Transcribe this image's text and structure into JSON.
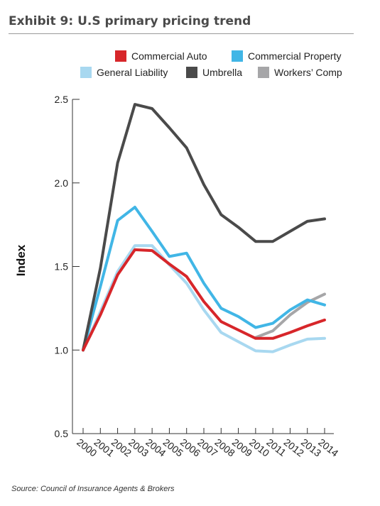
{
  "header": {
    "title": "Exhibit 9: U.S primary pricing trend"
  },
  "footer": {
    "source": "Source: Council of Insurance Agents & Brokers"
  },
  "chart_data": {
    "type": "line",
    "title": "",
    "xlabel": "",
    "ylabel": "Index",
    "x": [
      "2000",
      "2001",
      "2002",
      "2003",
      "2004",
      "2005",
      "2006",
      "2007",
      "2008",
      "2009",
      "2010",
      "2011",
      "2012",
      "2013",
      "2014"
    ],
    "ylim": [
      0.5,
      2.5
    ],
    "yticks": [
      "0.5",
      "1.0",
      "1.5",
      "2.0",
      "2.5"
    ],
    "grid": false,
    "legend_position": "top",
    "series": [
      {
        "name": "Commercial Auto",
        "color": "#d7262a",
        "values": [
          1.0,
          1.21,
          1.45,
          1.6,
          1.595,
          1.515,
          1.44,
          1.29,
          1.17,
          1.12,
          1.07,
          1.07,
          1.105,
          1.145,
          1.18
        ]
      },
      {
        "name": "Commercial Property",
        "color": "#41b6e6",
        "values": [
          1.0,
          1.38,
          1.775,
          1.855,
          1.71,
          1.56,
          1.58,
          1.4,
          1.25,
          1.2,
          1.135,
          1.16,
          1.24,
          1.3,
          1.27
        ]
      },
      {
        "name": "General Liability",
        "color": "#a8d8f0",
        "values": [
          1.0,
          1.23,
          1.47,
          1.625,
          1.625,
          1.51,
          1.4,
          1.24,
          1.105,
          1.05,
          0.995,
          0.99,
          1.03,
          1.065,
          1.07
        ]
      },
      {
        "name": "Umbrella",
        "color": "#4a4a4a",
        "values": [
          1.0,
          1.49,
          2.12,
          2.47,
          2.445,
          2.33,
          2.21,
          1.99,
          1.81,
          1.735,
          1.65,
          1.65,
          1.71,
          1.77,
          1.785
        ]
      },
      {
        "name": "Workers' Comp",
        "color": "#a6a6a8",
        "values": [
          null,
          null,
          null,
          null,
          null,
          null,
          null,
          null,
          null,
          null,
          1.075,
          1.115,
          1.21,
          1.285,
          1.335
        ]
      }
    ],
    "hidden_before_2010_note": ""
  }
}
